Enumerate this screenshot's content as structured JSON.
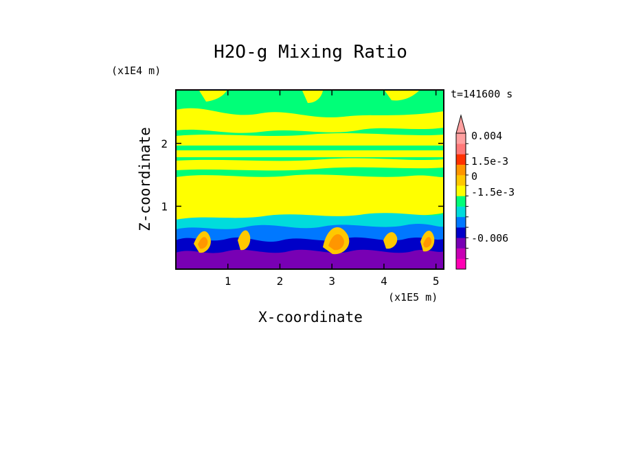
{
  "chart_data": {
    "type": "heatmap",
    "title": "H2O-g Mixing Ratio",
    "xlabel": "X-coordinate",
    "ylabel": "Z-coordinate",
    "x_multiplier": "(x1E5 m)",
    "y_multiplier": "(x1E4 m)",
    "time_label": "t=141600 s",
    "x_ticks": [
      "1",
      "2",
      "3",
      "4",
      "5"
    ],
    "x_tick_values": [
      1,
      2,
      3,
      4,
      5
    ],
    "y_ticks": [
      "1",
      "2"
    ],
    "y_tick_values": [
      1,
      2
    ],
    "xlim": [
      0,
      5.15
    ],
    "ylim": [
      0,
      2.85
    ],
    "colorbar": {
      "labels": [
        "0.004",
        "1.5e-3",
        "0",
        "-1.5e-3",
        "-0.006"
      ],
      "colors": [
        "#ff00b4",
        "#c800b4",
        "#7800b4",
        "#0000c8",
        "#0078ff",
        "#00dcdc",
        "#00ff78",
        "#ffff00",
        "#ffc800",
        "#ff9600",
        "#ff3200",
        "#ff7878",
        "#ffa0a0"
      ]
    },
    "field_description_levels": {
      "upper_layer_colors": [
        "#00ff78",
        "#ffff00"
      ],
      "lower_layer_colors": [
        "#7800b4",
        "#0000c8",
        "#0078ff",
        "#00dcdc",
        "#ff9600",
        "#ffc800"
      ]
    }
  }
}
